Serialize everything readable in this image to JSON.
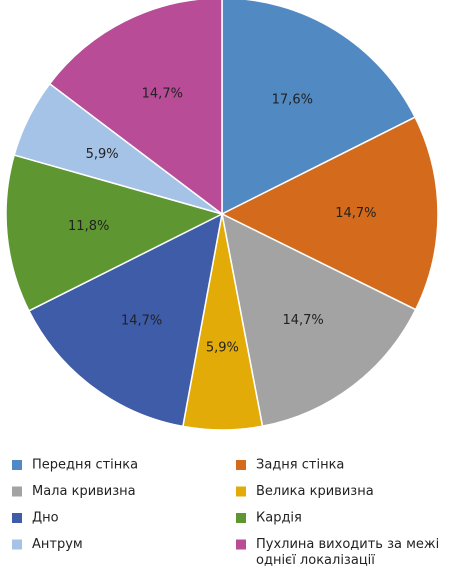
{
  "chart_data": {
    "type": "pie",
    "start_angle_deg": 0,
    "direction": "clockwise",
    "slices": [
      {
        "name": "Передня стінка",
        "value": 17.6,
        "label": "17,6%",
        "color": "#5189c3"
      },
      {
        "name": "Задня стінка",
        "value": 14.7,
        "label": "14,7%",
        "color": "#d46b1c"
      },
      {
        "name": "Мала кривизна",
        "value": 14.7,
        "label": "14,7%",
        "color": "#a3a3a3"
      },
      {
        "name": "Велика кривизна",
        "value": 5.9,
        "label": "5,9%",
        "color": "#e3ab08"
      },
      {
        "name": "Дно",
        "value": 14.7,
        "label": "14,7%",
        "color": "#3e5ca8"
      },
      {
        "name": "Кардія",
        "value": 11.8,
        "label": "11,8%",
        "color": "#5e9632"
      },
      {
        "name": "Антрум",
        "value": 5.9,
        "label": "5,9%",
        "color": "#a5c3e6"
      },
      {
        "name": "Пухлина виходить за межі однієї локалізації",
        "value": 14.7,
        "label": "14,7%",
        "color": "#b84c97"
      }
    ],
    "legend": {
      "placement": "bottom",
      "columns": 2,
      "items": [
        {
          "lines": [
            "Передня стінка"
          ],
          "color": "#5189c3"
        },
        {
          "lines": [
            "Задня стінка"
          ],
          "color": "#d46b1c"
        },
        {
          "lines": [
            "Мала кривизна"
          ],
          "color": "#a3a3a3"
        },
        {
          "lines": [
            "Велика кривизна"
          ],
          "color": "#e3ab08"
        },
        {
          "lines": [
            "Дно"
          ],
          "color": "#3e5ca8"
        },
        {
          "lines": [
            "Кардія"
          ],
          "color": "#5e9632"
        },
        {
          "lines": [
            "Антрум"
          ],
          "color": "#a5c3e6"
        },
        {
          "lines": [
            "Пухлина виходить за межі",
            "однієї локалізації"
          ],
          "color": "#b84c97"
        }
      ]
    }
  }
}
